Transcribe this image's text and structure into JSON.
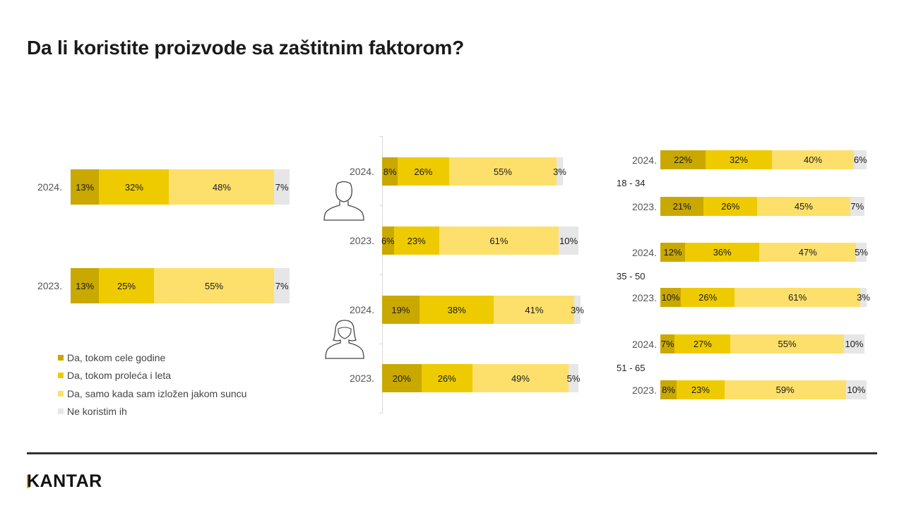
{
  "title": "Da li koristite proizvode sa zaštitnim faktorom?",
  "colors": {
    "c0": "#c9a800",
    "c1": "#eecb00",
    "c2": "#fde06b",
    "c3": "#e6e6e6"
  },
  "legend": [
    {
      "label": "Da, tokom cele godine",
      "color": "#c9a800"
    },
    {
      "label": "Da, tokom proleća i leta",
      "color": "#eecb00"
    },
    {
      "label": "Da, samo kada sam izložen jakom suncu",
      "color": "#fde06b"
    },
    {
      "label": "Ne koristim ih",
      "color": "#e6e6e6"
    }
  ],
  "group_labels": {
    "g1": "18 - 34",
    "g2": "35 - 50",
    "g3": "51 - 65"
  },
  "icons": {
    "male": "male-person-icon",
    "female": "female-person-icon"
  },
  "logo": "KANTAR",
  "chart_data": [
    {
      "type": "bar",
      "stacked": true,
      "orientation": "horizontal",
      "subset": "Total",
      "categories": [
        "2024.",
        "2023."
      ],
      "series": [
        {
          "name": "Da, tokom cele godine",
          "values": [
            13,
            13
          ],
          "labels": [
            "13%",
            "13%"
          ]
        },
        {
          "name": "Da, tokom proleća i leta",
          "values": [
            32,
            25
          ],
          "labels": [
            "32%",
            "25%"
          ]
        },
        {
          "name": "Da, samo kada sam izložen jakom suncu",
          "values": [
            48,
            55
          ],
          "labels": [
            "48%",
            "55%"
          ]
        },
        {
          "name": "Ne koristim ih",
          "values": [
            7,
            7
          ],
          "labels": [
            "7%",
            "7%"
          ]
        }
      ]
    },
    {
      "type": "bar",
      "stacked": true,
      "orientation": "horizontal",
      "subset": "male-person-icon",
      "categories": [
        "2024.",
        "2023."
      ],
      "series": [
        {
          "name": "Da, tokom cele godine",
          "values": [
            8,
            6
          ],
          "labels": [
            "8%",
            "6%"
          ]
        },
        {
          "name": "Da, tokom proleća i leta",
          "values": [
            26,
            23
          ],
          "labels": [
            "26%",
            "23%"
          ]
        },
        {
          "name": "Da, samo kada sam izložen jakom suncu",
          "values": [
            55,
            61
          ],
          "labels": [
            "55%",
            "61%"
          ]
        },
        {
          "name": "Ne koristim ih",
          "values": [
            3,
            10
          ],
          "labels": [
            "3%",
            "10%"
          ]
        }
      ]
    },
    {
      "type": "bar",
      "stacked": true,
      "orientation": "horizontal",
      "subset": "female-person-icon",
      "categories": [
        "2024.",
        "2023."
      ],
      "series": [
        {
          "name": "Da, tokom cele godine",
          "values": [
            19,
            20
          ],
          "labels": [
            "19%",
            "20%"
          ]
        },
        {
          "name": "Da, tokom proleća i leta",
          "values": [
            38,
            26
          ],
          "labels": [
            "38%",
            "26%"
          ]
        },
        {
          "name": "Da, samo kada sam izložen jakom suncu",
          "values": [
            41,
            49
          ],
          "labels": [
            "41%",
            "49%"
          ]
        },
        {
          "name": "Ne koristim ih",
          "values": [
            3,
            5
          ],
          "labels": [
            "3%",
            "5%"
          ]
        }
      ]
    },
    {
      "type": "bar",
      "stacked": true,
      "orientation": "horizontal",
      "subset": "18 - 34",
      "categories": [
        "2024.",
        "2023."
      ],
      "series": [
        {
          "name": "Da, tokom cele godine",
          "values": [
            22,
            21
          ],
          "labels": [
            "22%",
            "21%"
          ]
        },
        {
          "name": "Da, tokom proleća i leta",
          "values": [
            32,
            26
          ],
          "labels": [
            "32%",
            "26%"
          ]
        },
        {
          "name": "Da, samo kada sam izložen jakom suncu",
          "values": [
            40,
            45
          ],
          "labels": [
            "40%",
            "45%"
          ]
        },
        {
          "name": "Ne koristim ih",
          "values": [
            6,
            7
          ],
          "labels": [
            "6%",
            "7%"
          ]
        }
      ]
    },
    {
      "type": "bar",
      "stacked": true,
      "orientation": "horizontal",
      "subset": "35 - 50",
      "categories": [
        "2024.",
        "2023."
      ],
      "series": [
        {
          "name": "Da, tokom cele godine",
          "values": [
            12,
            10
          ],
          "labels": [
            "12%",
            "10%"
          ]
        },
        {
          "name": "Da, tokom proleća i leta",
          "values": [
            36,
            26
          ],
          "labels": [
            "36%",
            "26%"
          ]
        },
        {
          "name": "Da, samo kada sam izložen jakom suncu",
          "values": [
            47,
            61
          ],
          "labels": [
            "47%",
            "61%"
          ]
        },
        {
          "name": "Ne koristim ih",
          "values": [
            5,
            3
          ],
          "labels": [
            "5%",
            "3%"
          ]
        }
      ]
    },
    {
      "type": "bar",
      "stacked": true,
      "orientation": "horizontal",
      "subset": "51 - 65",
      "categories": [
        "2024.",
        "2023."
      ],
      "series": [
        {
          "name": "Da, tokom cele godine",
          "values": [
            7,
            8
          ],
          "labels": [
            "7%",
            "8%"
          ]
        },
        {
          "name": "Da, tokom proleća i leta",
          "values": [
            27,
            23
          ],
          "labels": [
            "27%",
            "23%"
          ]
        },
        {
          "name": "Da, samo kada sam izložen jakom suncu",
          "values": [
            55,
            59
          ],
          "labels": [
            "55%",
            "59%"
          ]
        },
        {
          "name": "Ne koristim ih",
          "values": [
            10,
            10
          ],
          "labels": [
            "10%",
            "10%"
          ]
        }
      ]
    }
  ]
}
